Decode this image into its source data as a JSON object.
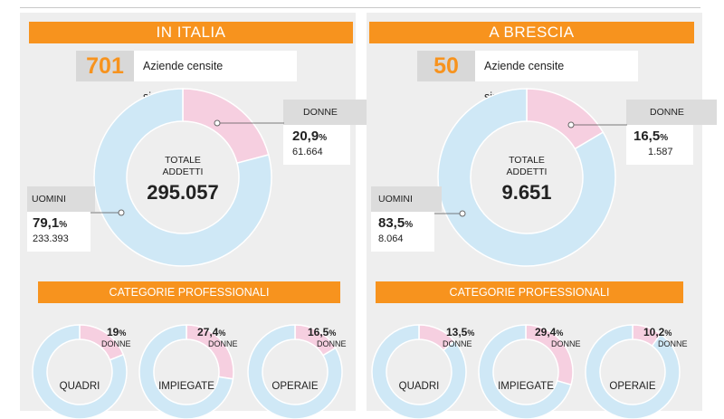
{
  "colors": {
    "orange": "#f7931e",
    "men": "#cfe8f6",
    "women": "#f6cfe0",
    "panel": "#eeeeee"
  },
  "left": {
    "banner": "IN ITALIA",
    "count": "701",
    "count_label": "Aziende censite sindacalizzate",
    "center_line1": "TOTALE",
    "center_line2": "ADDETTI",
    "total": "295.057",
    "donne_label": "DONNE",
    "donne_pct": "20,9",
    "donne_abs": "61.664",
    "uomini_label": "UOMINI",
    "uomini_pct": "79,1",
    "uomini_abs": "233.393",
    "cat_banner": "CATEGORIE PROFESSIONALI",
    "categories": [
      {
        "name": "QUADRI",
        "pct": "19",
        "donne": "DONNE"
      },
      {
        "name": "IMPIEGATE",
        "pct": "27,4",
        "donne": "DONNE"
      },
      {
        "name": "OPERAIE",
        "pct": "16,5",
        "donne": "DONNE"
      }
    ]
  },
  "right": {
    "banner": "A BRESCIA",
    "count": "50",
    "count_label": "Aziende censite sindacalizzate",
    "center_line1": "TOTALE",
    "center_line2": "ADDETTI",
    "total": "9.651",
    "donne_label": "DONNE",
    "donne_pct": "16,5",
    "donne_abs": "1.587",
    "uomini_label": "UOMINI",
    "uomini_pct": "83,5",
    "uomini_abs": "8.064",
    "cat_banner": "CATEGORIE PROFESSIONALI",
    "categories": [
      {
        "name": "QUADRI",
        "pct": "13,5",
        "donne": "DONNE"
      },
      {
        "name": "IMPIEGATE",
        "pct": "29,4",
        "donne": "DONNE"
      },
      {
        "name": "OPERAIE",
        "pct": "10,2",
        "donne": "DONNE"
      }
    ]
  },
  "pct_sign": "%",
  "chart_data": [
    {
      "type": "pie",
      "title": "IN ITALIA",
      "categories": [
        "DONNE",
        "UOMINI"
      ],
      "values": [
        20.9,
        79.1
      ],
      "counts": [
        61664,
        233393
      ],
      "total": 295057
    },
    {
      "type": "pie",
      "title": "A BRESCIA",
      "categories": [
        "DONNE",
        "UOMINI"
      ],
      "values": [
        16.5,
        83.5
      ],
      "counts": [
        1587,
        8064
      ],
      "total": 9651
    },
    {
      "type": "bar",
      "title": "CATEGORIE PROFESSIONALI",
      "categories": [
        "QUADRI",
        "IMPIEGATE",
        "OPERAIE"
      ],
      "series": [
        {
          "name": "IN ITALIA",
          "values": [
            19,
            27.4,
            16.5
          ]
        },
        {
          "name": "A BRESCIA",
          "values": [
            13.5,
            29.4,
            10.2
          ]
        }
      ]
    }
  ]
}
